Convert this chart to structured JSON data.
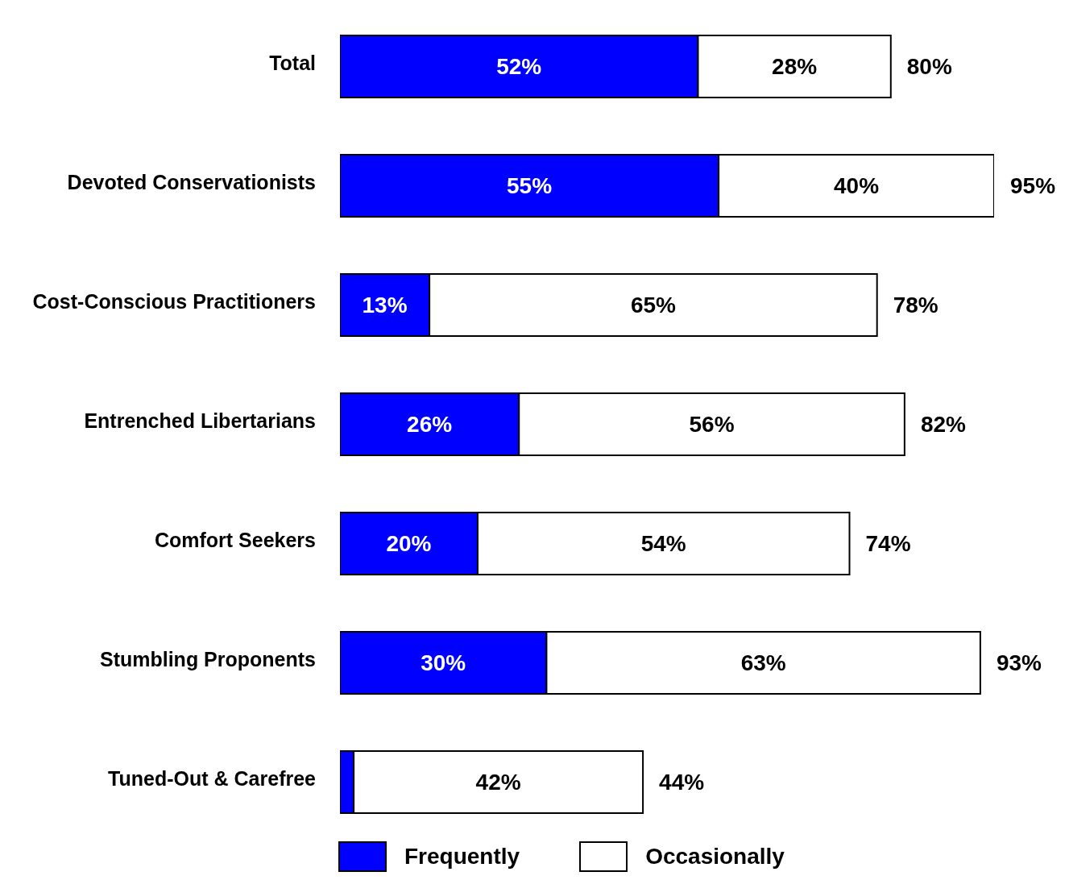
{
  "chart_data": {
    "type": "bar",
    "orientation": "horizontal",
    "stacked": true,
    "legend": "bottom",
    "categories": [
      "Total",
      "Devoted Conservationists",
      "Cost-Conscious Practitioners",
      "Entrenched Libertarians",
      "Comfort Seekers",
      "Stumbling Proponents",
      "Tuned-Out & Carefree"
    ],
    "series": [
      {
        "name": "Frequently",
        "color": "#0000ff",
        "values": [
          52,
          55,
          13,
          26,
          20,
          30,
          2
        ],
        "value_labels": [
          "52%",
          "55%",
          "13%",
          "26%",
          "20%",
          "30%",
          null
        ]
      },
      {
        "name": "Occasionally",
        "color": "#ffffff",
        "values": [
          28,
          40,
          65,
          56,
          54,
          63,
          42
        ],
        "value_labels": [
          "28%",
          "40%",
          "65%",
          "56%",
          "54%",
          "63%",
          "42%"
        ]
      }
    ],
    "totals": [
      "80%",
      "95%",
      "78%",
      "82%",
      "74%",
      "93%",
      "44%"
    ]
  }
}
